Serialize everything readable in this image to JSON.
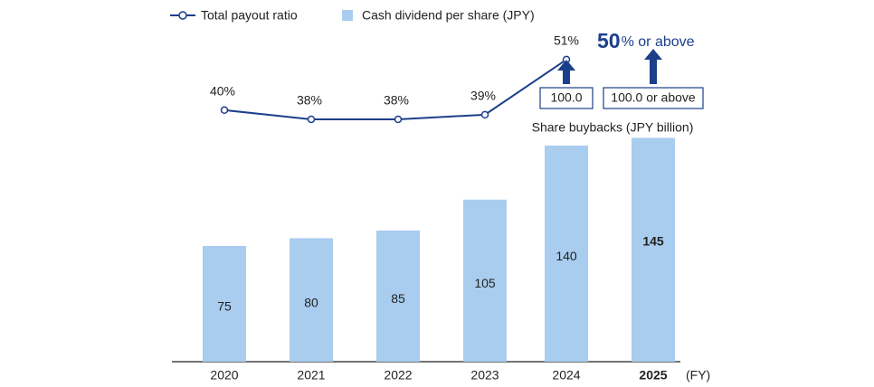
{
  "chart_data": {
    "type": "bar",
    "categories": [
      "2020",
      "2021",
      "2022",
      "2023",
      "2024",
      "2025"
    ],
    "x_unit": "(FY)",
    "series": [
      {
        "name": "Cash dividend per share (JPY)",
        "color": "#a9cdef",
        "values": [
          75,
          80,
          85,
          105,
          140,
          145
        ]
      },
      {
        "name": "Total payout ratio",
        "color": "#1c3f8c",
        "type": "line",
        "values": [
          40,
          38,
          38,
          39,
          51,
          null
        ],
        "value_labels": [
          "40%",
          "38%",
          "38%",
          "39%",
          "51%",
          null
        ]
      }
    ],
    "payout_target": {
      "value": 50,
      "text": "% or above"
    },
    "buybacks": {
      "name": "Share buybacks (JPY billion)",
      "values": [
        null,
        null,
        null,
        null,
        100,
        100
      ],
      "value_labels": [
        null,
        null,
        null,
        null,
        "100.0",
        "100.0 or above"
      ]
    }
  }
}
